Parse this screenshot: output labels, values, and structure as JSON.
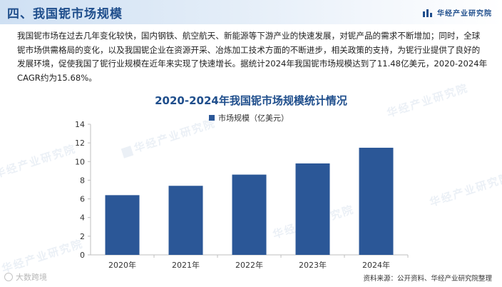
{
  "header": {
    "title": "四、我国铌市场规模",
    "brand": "华经产业研究院"
  },
  "intro_text": "我国铌市场在过去几年变化较快，国内钢铁、航空航天、新能源等下游产业的快速发展，对铌产品的需求不断增加；同时，全球铌市场供需格局的变化，以及我国铌企业在资源开采、冶炼加工技术方面的不断进步，相关政策的支持，为铌行业提供了良好的发展环境，促使我国了铌行业规模在近年来实现了快速增长。据统计2024年我国铌市场规模达到了11.48亿美元，2020-2024年CAGR约为15.68%。",
  "chart_data": {
    "type": "bar",
    "title": "2020-2024年我国铌市场规模统计情况",
    "categories": [
      "2020年",
      "2021年",
      "2022年",
      "2023年",
      "2024年"
    ],
    "series": [
      {
        "name": "市场规模（亿美元）",
        "values": [
          6.4,
          7.4,
          8.6,
          9.8,
          11.48
        ]
      }
    ],
    "ylim": [
      0,
      14
    ],
    "yticks": [
      0,
      2,
      4,
      6,
      8,
      10,
      12,
      14
    ],
    "legend_position": "top",
    "grid": false,
    "bar_color": "#2b5797"
  },
  "watermark_text": "华经产业研究院",
  "source_text": "资料来源：公开资料、华经产业研究院整理",
  "corner_mark_text": "大数跨境"
}
